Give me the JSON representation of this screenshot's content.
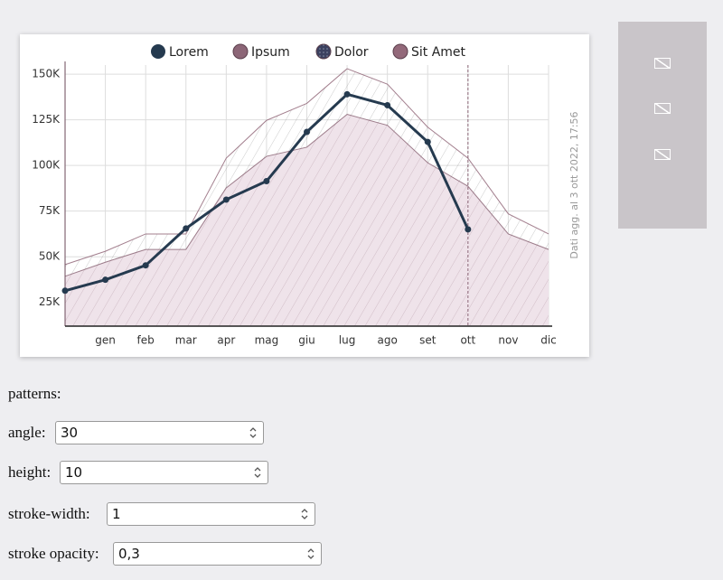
{
  "chart_data": {
    "type": "area",
    "categories": [
      null,
      "gen",
      "feb",
      "mar",
      "apr",
      "mag",
      "giu",
      "lug",
      "ago",
      "set",
      "ott",
      "nov",
      "dic"
    ],
    "series": [
      {
        "name": "Lorem",
        "type": "line",
        "color": "#253a4f",
        "values": [
          31400,
          37400,
          45300,
          65500,
          81300,
          91400,
          118400,
          139000,
          133000,
          112900,
          65000,
          null,
          null
        ]
      },
      {
        "name": "Ipsum",
        "color": "#8c6677",
        "values": [
          39300,
          47000,
          54000,
          54000,
          87700,
          105000,
          110000,
          128000,
          122000,
          101500,
          88600,
          62500,
          54000
        ]
      },
      {
        "name": "Dolor",
        "color": "#3b4160",
        "values": [
          27500,
          31400,
          35900,
          35900,
          55000,
          65000,
          69700,
          78400,
          74300,
          63000,
          56000,
          40800,
          35900
        ]
      },
      {
        "name": "Sit Amet",
        "color": "#93697a",
        "values": [
          45700,
          53000,
          62500,
          62500,
          104000,
          124700,
          134000,
          153000,
          144500,
          121000,
          104000,
          73500,
          62500
        ]
      }
    ],
    "ylim": [
      12000,
      155000
    ],
    "yticks": [
      {
        "value": 25000,
        "label": "25K"
      },
      {
        "value": 50000,
        "label": "50K"
      },
      {
        "value": 75000,
        "label": "75K"
      },
      {
        "value": 100000,
        "label": "100K"
      },
      {
        "value": 125000,
        "label": "125K"
      },
      {
        "value": 150000,
        "label": "150K"
      }
    ],
    "grid": true,
    "annotation": "Dati agg. al 3 ott 2022, 17:56"
  },
  "controls": {
    "title": "patterns:",
    "fields": [
      {
        "label": "angle:",
        "value": "30"
      },
      {
        "label": "height:",
        "value": "10"
      },
      {
        "label": "stroke-width:",
        "value": "1"
      },
      {
        "label": "stroke opacity:",
        "value": "0,3"
      }
    ]
  }
}
